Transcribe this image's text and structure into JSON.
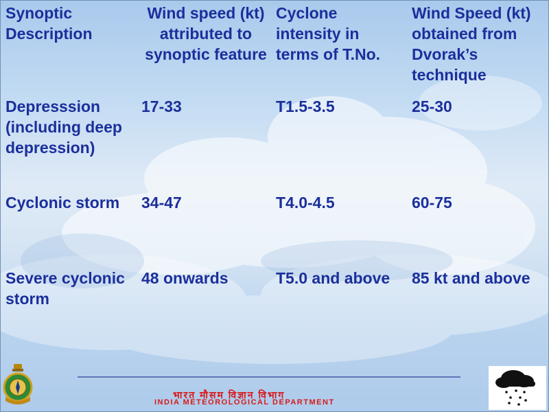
{
  "table": {
    "headers": [
      "Synoptic Description",
      "Wind speed (kt) attributed to synoptic feature",
      "Cyclone intensity in terms of T.No.",
      "Wind Speed (kt) obtained from Dvorak’s technique"
    ],
    "rows": [
      [
        "Depresssion (including deep depression)",
        "17-33",
        "T1.5-3.5",
        "25-30"
      ],
      [
        "Cyclonic storm",
        "34-47",
        "T4.0-4.5",
        "60-75"
      ],
      [
        "Severe cyclonic storm",
        "48 onwards",
        "T5.0 and above",
        "85 kt and above"
      ]
    ]
  },
  "footer": {
    "dept_hindi": "भारत मौसम विज्ञान विभाग",
    "dept_english": "INDIA METEOROLOGICAL DEPARTMENT",
    "logo_icon": "imd-emblem-icon",
    "weather_icon": "rain-cloud-icon",
    "line_color": "#6075b7",
    "text_color": "#d81a1a"
  }
}
